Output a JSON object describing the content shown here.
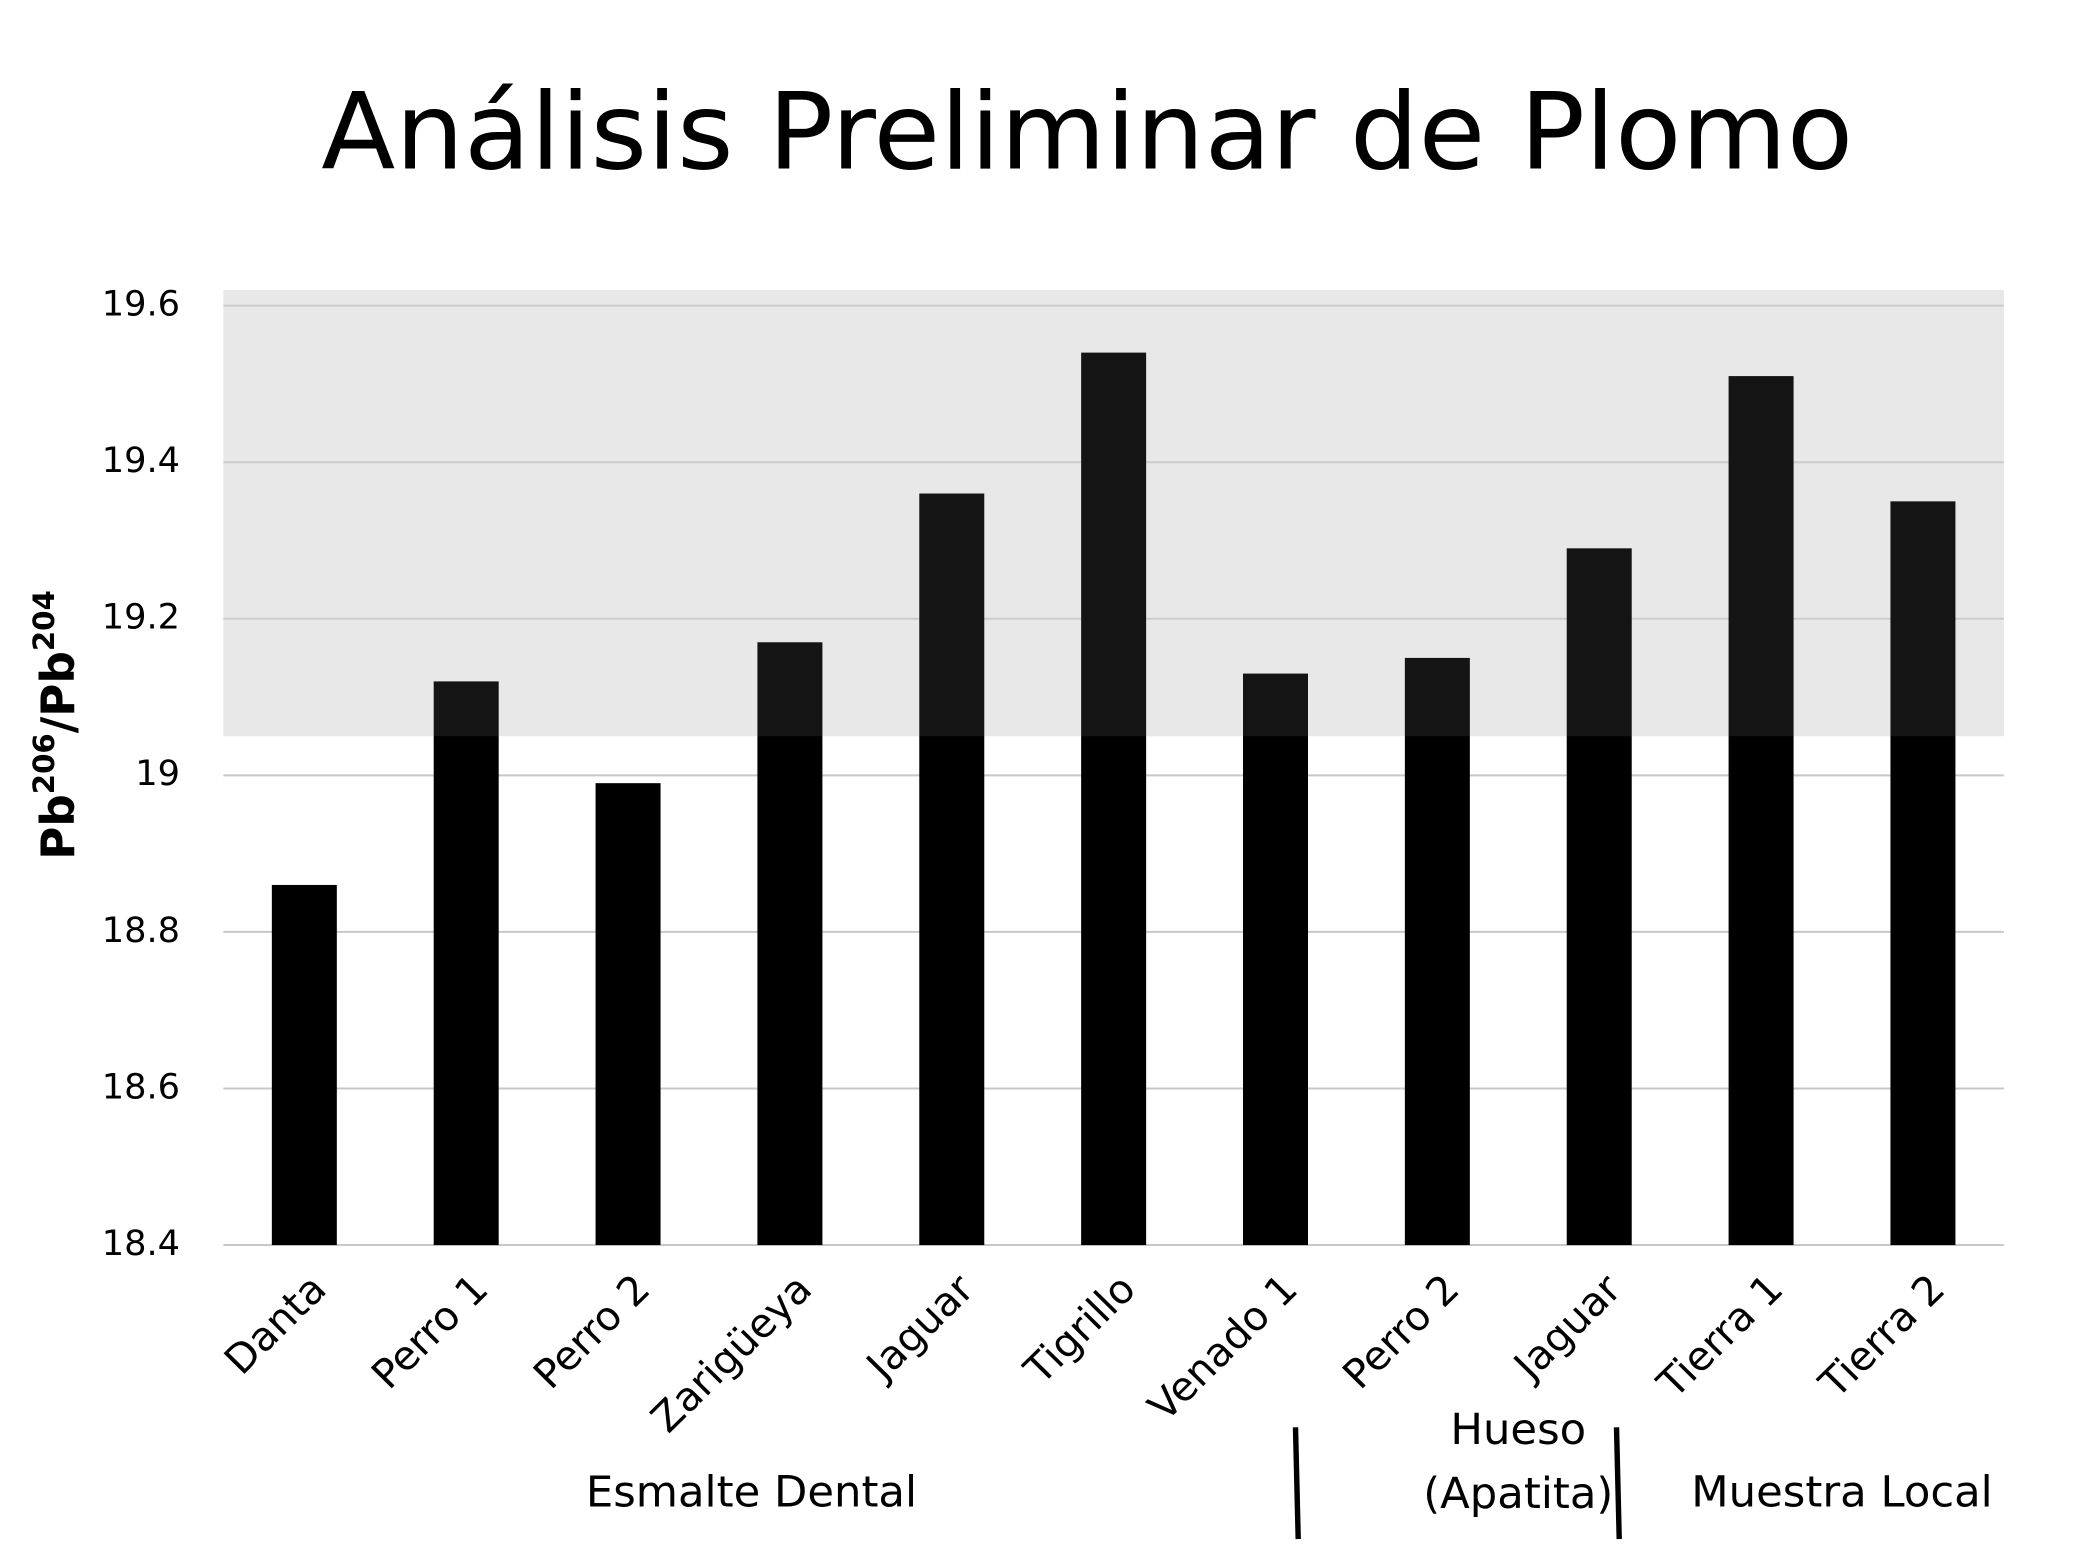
{
  "chart_data": {
    "type": "bar",
    "title": "Análisis Preliminar de Plomo",
    "y_label": [
      "Pb",
      "206",
      "/Pb",
      "204"
    ],
    "categories": [
      "Danta",
      "Perro 1",
      "Perro 2",
      "Zarigüeya",
      "Jaguar",
      "Tigrillo",
      "Venado 1",
      "Perro 2",
      "Jaguar",
      "Tierra 1",
      "Tierra 2"
    ],
    "values": [
      18.86,
      19.12,
      18.99,
      19.17,
      19.36,
      19.54,
      19.13,
      19.15,
      19.29,
      19.51,
      19.35
    ],
    "color": "#000000",
    "ylim": [
      18.4,
      19.62
    ],
    "yticks": [
      18.4,
      18.6,
      18.8,
      19,
      19.2,
      19.4,
      19.6
    ],
    "grid": true,
    "shaded_range": [
      19.05,
      19.62
    ],
    "shade_color": "#e6e6e6",
    "groups": [
      {
        "label_lines": [
          "Esmalte Dental"
        ],
        "start": 0,
        "end": 6
      },
      {
        "label_lines": [
          "Hueso",
          "(Apatita)"
        ],
        "start": 7,
        "end": 8
      },
      {
        "label_lines": [
          "Muestra Local"
        ],
        "start": 9,
        "end": 10
      }
    ]
  }
}
